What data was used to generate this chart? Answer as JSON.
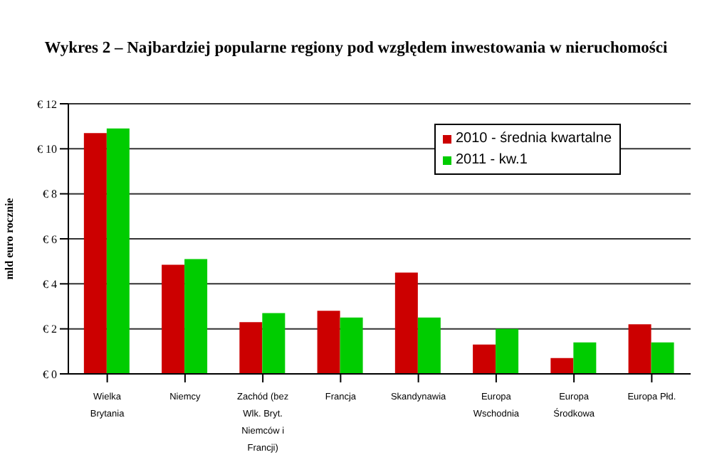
{
  "chart_data": {
    "type": "bar",
    "title": "Wykres 2 – Najbardziej popularne regiony pod względem inwestowania w nieruchomości",
    "ylabel": "mld euro rocznie",
    "categories": [
      "Wielka Brytania",
      "Niemcy",
      "Zachód (bez Wlk. Bryt. Niemców i Francji)",
      "Francja",
      "Skandynawia",
      "Europa Wschodnia",
      "Europa Środkowa",
      "Europa Płd."
    ],
    "series": [
      {
        "name": "2010 - średnia kwartalne",
        "color": "#cc0000",
        "values": [
          10.7,
          4.85,
          2.3,
          2.8,
          4.5,
          1.3,
          0.7,
          2.2
        ]
      },
      {
        "name": "2011 - kw.1",
        "color": "#00cc00",
        "values": [
          10.9,
          5.1,
          2.7,
          2.5,
          2.5,
          2.0,
          1.4,
          1.4
        ]
      }
    ],
    "ylim": [
      0,
      12
    ],
    "yticks": [
      {
        "value": 0,
        "label": "€ 0"
      },
      {
        "value": 2,
        "label": "€ 2"
      },
      {
        "value": 4,
        "label": "€ 4"
      },
      {
        "value": 6,
        "label": "€ 6"
      },
      {
        "value": 8,
        "label": "€ 8"
      },
      {
        "value": 10,
        "label": "€ 10"
      },
      {
        "value": 12,
        "label": "€ 12"
      }
    ],
    "grid": "y",
    "legend": "top right"
  }
}
